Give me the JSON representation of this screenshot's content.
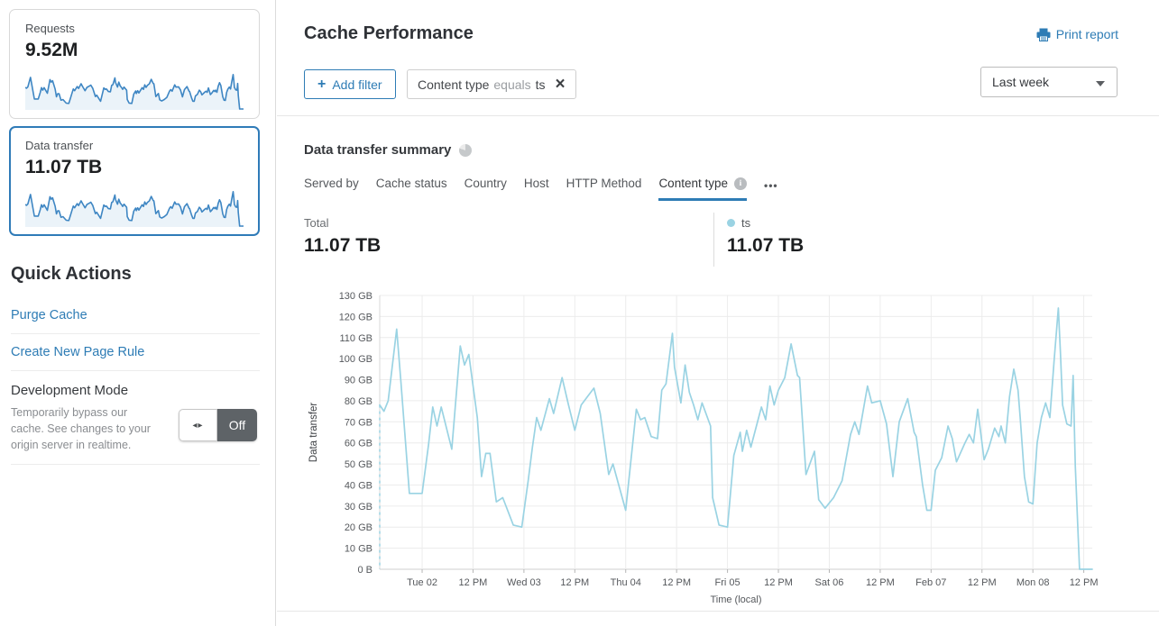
{
  "colors": {
    "accent_blue": "#2e7cb5",
    "chart_line": "#9ad3e3",
    "sparkline": "#3e86c3",
    "sparkline_fill": "rgba(62,134,197,0.10)",
    "selected_card_border": "#2f7bb8",
    "toggle_off_bg": "#5e6367"
  },
  "sidebar": {
    "cards": [
      {
        "label": "Requests",
        "value": "9.52M"
      },
      {
        "label": "Data transfer",
        "value": "11.07 TB"
      }
    ],
    "quick_actions": {
      "title": "Quick Actions",
      "links": [
        "Purge Cache",
        "Create New Page Rule"
      ],
      "dev_mode": {
        "title": "Development Mode",
        "description": "Temporarily bypass our cache. See changes to your origin server in realtime.",
        "toggle_state": "Off"
      }
    }
  },
  "header": {
    "title": "Cache Performance",
    "print_label": "Print report",
    "add_filter_label": "Add filter",
    "filter_chip": {
      "field": "Content type",
      "operator": "equals",
      "value": "ts"
    },
    "time_range": "Last week"
  },
  "summary": {
    "title": "Data transfer summary",
    "tabs": [
      {
        "label": "Served by"
      },
      {
        "label": "Cache status"
      },
      {
        "label": "Country"
      },
      {
        "label": "Host"
      },
      {
        "label": "HTTP Method"
      },
      {
        "label": "Content type"
      }
    ],
    "more_label": "•••",
    "total_label": "Total",
    "total_value": "11.07 TB",
    "series_label": "ts",
    "series_value": "11.07 TB"
  },
  "chart_data": {
    "type": "line",
    "title": "",
    "xlabel": "Time (local)",
    "ylabel": "Data transfer",
    "unit": "GB",
    "ylim": [
      0,
      130
    ],
    "hours_span": 168,
    "grid": true,
    "line_color": "#9ad3e3",
    "start_dashed": true,
    "y_tick_labels": [
      "0 B",
      "10 GB",
      "20 GB",
      "30 GB",
      "40 GB",
      "50 GB",
      "60 GB",
      "70 GB",
      "80 GB",
      "90 GB",
      "100 GB",
      "110 GB",
      "120 GB",
      "130 GB"
    ],
    "x_ticks": [
      {
        "h": 10,
        "label": "Tue 02"
      },
      {
        "h": 22,
        "label": "12 PM"
      },
      {
        "h": 34,
        "label": "Wed 03"
      },
      {
        "h": 46,
        "label": "12 PM"
      },
      {
        "h": 58,
        "label": "Thu 04"
      },
      {
        "h": 70,
        "label": "12 PM"
      },
      {
        "h": 82,
        "label": "Fri 05"
      },
      {
        "h": 94,
        "label": "12 PM"
      },
      {
        "h": 106,
        "label": "Sat 06"
      },
      {
        "h": 118,
        "label": "12 PM"
      },
      {
        "h": 130,
        "label": "Feb 07"
      },
      {
        "h": 142,
        "label": "12 PM"
      },
      {
        "h": 154,
        "label": "Mon 08"
      },
      {
        "h": 166,
        "label": "12 PM"
      }
    ],
    "points": [
      [
        0,
        78
      ],
      [
        1,
        75
      ],
      [
        2,
        80
      ],
      [
        4,
        114
      ],
      [
        5,
        89
      ],
      [
        7,
        36
      ],
      [
        10,
        36
      ],
      [
        11.5,
        59
      ],
      [
        12.5,
        77
      ],
      [
        13.5,
        68
      ],
      [
        14.5,
        77
      ],
      [
        17,
        57
      ],
      [
        19,
        106
      ],
      [
        20,
        97
      ],
      [
        21,
        102
      ],
      [
        23,
        72
      ],
      [
        24,
        44
      ],
      [
        25,
        55
      ],
      [
        26,
        55
      ],
      [
        27.5,
        32
      ],
      [
        29,
        34
      ],
      [
        31.5,
        21
      ],
      [
        33.5,
        20
      ],
      [
        35,
        42
      ],
      [
        36,
        58
      ],
      [
        37,
        72
      ],
      [
        38,
        66
      ],
      [
        40,
        81
      ],
      [
        41,
        74
      ],
      [
        43,
        91
      ],
      [
        44.5,
        78
      ],
      [
        46,
        66
      ],
      [
        47.5,
        78
      ],
      [
        49,
        82
      ],
      [
        50.5,
        86
      ],
      [
        52,
        74
      ],
      [
        54,
        45
      ],
      [
        55,
        50
      ],
      [
        58,
        28
      ],
      [
        60.5,
        76
      ],
      [
        61.5,
        71
      ],
      [
        62.5,
        72
      ],
      [
        64,
        63
      ],
      [
        65.5,
        62
      ],
      [
        66.5,
        85
      ],
      [
        67.5,
        88
      ],
      [
        69,
        112
      ],
      [
        69.5,
        96
      ],
      [
        71,
        79
      ],
      [
        72,
        97
      ],
      [
        73,
        84
      ],
      [
        74,
        78
      ],
      [
        75,
        71
      ],
      [
        76,
        79
      ],
      [
        78,
        68
      ],
      [
        78.5,
        34
      ],
      [
        80,
        21
      ],
      [
        82,
        20
      ],
      [
        83.5,
        54
      ],
      [
        85,
        65
      ],
      [
        85.5,
        56
      ],
      [
        86.5,
        66
      ],
      [
        87.5,
        58
      ],
      [
        90,
        77
      ],
      [
        91,
        71
      ],
      [
        92,
        87
      ],
      [
        93,
        78
      ],
      [
        94,
        85
      ],
      [
        95.5,
        91
      ],
      [
        97,
        107
      ],
      [
        98.5,
        92
      ],
      [
        99,
        91
      ],
      [
        100.5,
        45
      ],
      [
        102.5,
        56
      ],
      [
        103.5,
        33
      ],
      [
        105,
        29
      ],
      [
        107,
        34
      ],
      [
        109,
        42
      ],
      [
        111,
        64
      ],
      [
        112,
        70
      ],
      [
        113,
        64
      ],
      [
        115,
        87
      ],
      [
        116,
        79
      ],
      [
        118,
        80
      ],
      [
        119.5,
        69
      ],
      [
        121,
        44
      ],
      [
        122.5,
        70
      ],
      [
        124.5,
        81
      ],
      [
        126,
        65
      ],
      [
        126.5,
        63
      ],
      [
        128,
        40
      ],
      [
        129,
        28
      ],
      [
        130,
        28
      ],
      [
        131,
        47
      ],
      [
        132.5,
        53
      ],
      [
        134,
        68
      ],
      [
        135,
        62
      ],
      [
        136,
        51
      ],
      [
        138,
        60
      ],
      [
        139,
        64
      ],
      [
        140,
        60
      ],
      [
        141,
        76
      ],
      [
        142.5,
        52
      ],
      [
        143.5,
        57
      ],
      [
        145,
        67
      ],
      [
        146,
        63
      ],
      [
        146.5,
        68
      ],
      [
        147.5,
        60
      ],
      [
        148.5,
        82
      ],
      [
        149.5,
        95
      ],
      [
        150.5,
        85
      ],
      [
        151,
        72
      ],
      [
        152,
        44
      ],
      [
        153,
        32
      ],
      [
        154,
        31
      ],
      [
        155,
        60
      ],
      [
        156,
        72
      ],
      [
        157,
        79
      ],
      [
        158,
        72
      ],
      [
        159,
        99
      ],
      [
        160,
        124
      ],
      [
        160.5,
        103
      ],
      [
        161,
        78
      ],
      [
        162,
        69
      ],
      [
        163,
        68
      ],
      [
        163.5,
        92
      ],
      [
        164,
        49
      ],
      [
        165,
        0
      ],
      [
        168,
        0
      ]
    ]
  }
}
